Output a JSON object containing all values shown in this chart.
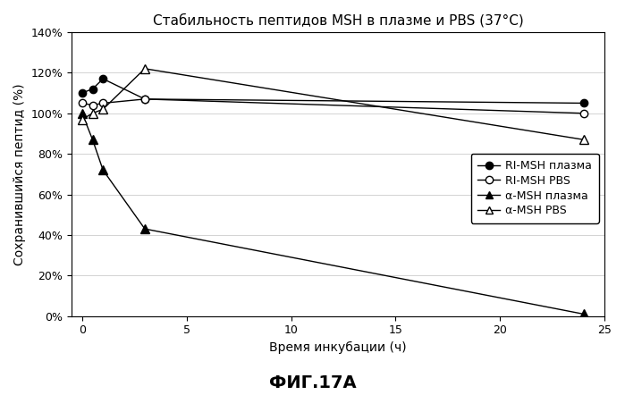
{
  "title": "Стабильность пептидов MSH в плазме и PBS (37°C)",
  "xlabel": "Время инкубации (ч)",
  "ylabel": "Сохранившийся пептид (%)",
  "caption": "ФИГ.17А",
  "series": [
    {
      "label": "RI-MSH плазма",
      "x": [
        0,
        0.5,
        1,
        3,
        24
      ],
      "y": [
        110,
        112,
        117,
        107,
        105
      ],
      "marker": "o",
      "markerfacecolor": "black",
      "markeredgecolor": "black",
      "linestyle": "-",
      "color": "black",
      "markersize": 6
    },
    {
      "label": "RI-MSH PBS",
      "x": [
        0,
        0.5,
        1,
        3,
        24
      ],
      "y": [
        105,
        104,
        105,
        107,
        100
      ],
      "marker": "o",
      "markerfacecolor": "white",
      "markeredgecolor": "black",
      "linestyle": "-",
      "color": "black",
      "markersize": 6
    },
    {
      "label": "α-MSH плазма",
      "x": [
        0,
        0.5,
        1,
        3,
        24
      ],
      "y": [
        100,
        87,
        72,
        43,
        1
      ],
      "marker": "^",
      "markerfacecolor": "black",
      "markeredgecolor": "black",
      "linestyle": "-",
      "color": "black",
      "markersize": 7
    },
    {
      "label": "α-MSH PBS",
      "x": [
        0,
        0.5,
        1,
        3,
        24
      ],
      "y": [
        97,
        100,
        102,
        122,
        87
      ],
      "marker": "^",
      "markerfacecolor": "white",
      "markeredgecolor": "black",
      "linestyle": "-",
      "color": "black",
      "markersize": 7
    }
  ],
  "xlim": [
    -0.5,
    25
  ],
  "ylim": [
    0,
    140
  ],
  "xticks": [
    0,
    5,
    10,
    15,
    20,
    25
  ],
  "yticks": [
    0,
    20,
    40,
    60,
    80,
    100,
    120,
    140
  ],
  "ytick_labels": [
    "0%",
    "20%",
    "40%",
    "60%",
    "80%",
    "100%",
    "120%",
    "140%"
  ],
  "background_color": "#f0f0f0"
}
